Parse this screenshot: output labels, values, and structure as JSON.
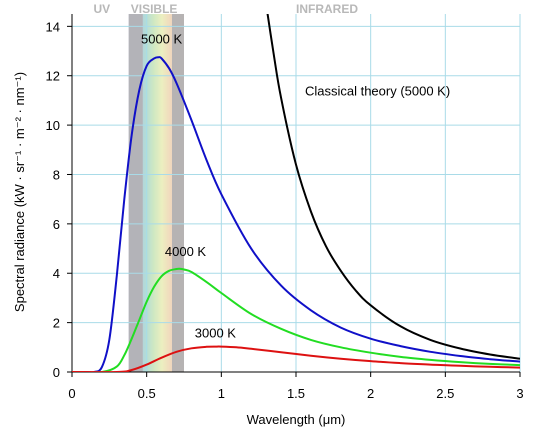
{
  "chart_data": {
    "type": "line",
    "xlabel": "Wavelength (μm)",
    "ylabel": "Spectral radiance (kW · sr⁻¹ · m⁻² · nm⁻¹)",
    "xlim": [
      0,
      3
    ],
    "ylim": [
      0,
      14.5
    ],
    "grid": true,
    "x_ticks": [
      0,
      0.5,
      1,
      1.5,
      2,
      2.5,
      3
    ],
    "x_tick_labels": [
      "0",
      "0.5",
      "1",
      "1.5",
      "2",
      "2.5",
      "3"
    ],
    "y_ticks": [
      0,
      2,
      4,
      6,
      8,
      10,
      12,
      14
    ],
    "y_tick_labels": [
      "0",
      "2",
      "4",
      "6",
      "8",
      "10",
      "12",
      "14"
    ],
    "regions": [
      {
        "label": "UV",
        "x_range": [
          0,
          0.38
        ]
      },
      {
        "label": "VISIBLE",
        "x_range": [
          0.38,
          0.75
        ]
      },
      {
        "label": "INFRARED",
        "x_range": [
          0.75,
          3
        ]
      }
    ],
    "series": [
      {
        "name": "5000 K",
        "color": "#1010c8",
        "x": [
          0.1,
          0.15,
          0.2,
          0.25,
          0.3,
          0.35,
          0.4,
          0.45,
          0.5,
          0.55,
          0.58,
          0.6,
          0.65,
          0.7,
          0.8,
          0.9,
          1.0,
          1.2,
          1.4,
          1.6,
          1.8,
          2.0,
          2.2,
          2.4,
          2.6,
          2.8,
          3.0
        ],
        "y": [
          0.0,
          0.0,
          0.2,
          1.3,
          3.9,
          7.0,
          9.6,
          11.4,
          12.4,
          12.7,
          12.75,
          12.7,
          12.3,
          11.7,
          10.2,
          8.6,
          7.2,
          5.0,
          3.5,
          2.5,
          1.8,
          1.35,
          1.05,
          0.82,
          0.65,
          0.52,
          0.42
        ]
      },
      {
        "name": "4000 K",
        "color": "#22dd22",
        "x": [
          0.2,
          0.3,
          0.35,
          0.4,
          0.45,
          0.5,
          0.55,
          0.6,
          0.65,
          0.7,
          0.72,
          0.75,
          0.8,
          0.9,
          1.0,
          1.2,
          1.4,
          1.6,
          1.8,
          2.0,
          2.2,
          2.4,
          2.6,
          2.8,
          3.0
        ],
        "y": [
          0.0,
          0.22,
          0.68,
          1.35,
          2.1,
          2.85,
          3.45,
          3.88,
          4.1,
          4.17,
          4.18,
          4.15,
          4.05,
          3.65,
          3.2,
          2.35,
          1.75,
          1.3,
          1.0,
          0.78,
          0.61,
          0.49,
          0.4,
          0.33,
          0.28
        ]
      },
      {
        "name": "3000 K",
        "color": "#dd1111",
        "x": [
          0.3,
          0.4,
          0.5,
          0.6,
          0.7,
          0.8,
          0.9,
          0.97,
          1.0,
          1.1,
          1.2,
          1.4,
          1.6,
          1.8,
          2.0,
          2.2,
          2.4,
          2.6,
          2.8,
          3.0
        ],
        "y": [
          0.0,
          0.08,
          0.3,
          0.58,
          0.82,
          0.96,
          1.02,
          1.03,
          1.03,
          1.0,
          0.94,
          0.8,
          0.66,
          0.54,
          0.44,
          0.36,
          0.3,
          0.25,
          0.21,
          0.18
        ]
      },
      {
        "name": "Classical theory (5000 K)",
        "color": "#000000",
        "x": [
          1.3,
          1.35,
          1.4,
          1.5,
          1.6,
          1.7,
          1.8,
          1.9,
          2.0,
          2.2,
          2.4,
          2.6,
          2.8,
          3.0
        ],
        "y": [
          14.9,
          12.9,
          11.1,
          8.4,
          6.5,
          5.1,
          4.1,
          3.3,
          2.7,
          1.85,
          1.3,
          0.95,
          0.71,
          0.54
        ]
      }
    ],
    "annotations": [
      {
        "text": "5000 K",
        "x": 0.6,
        "y": 13.3
      },
      {
        "text": "4000 K",
        "x": 0.76,
        "y": 4.7
      },
      {
        "text": "3000 K",
        "x": 0.96,
        "y": 1.4
      },
      {
        "text": "Classical theory (5000 K)",
        "x": 1.56,
        "y": 11.2
      }
    ]
  }
}
